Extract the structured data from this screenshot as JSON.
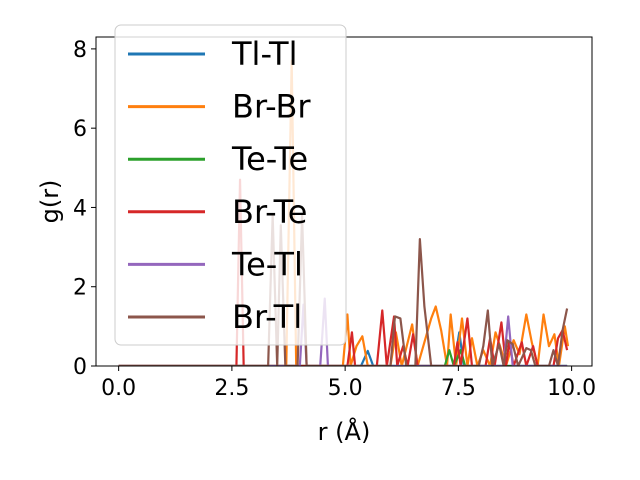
{
  "chart_data": {
    "type": "line",
    "title": "",
    "xlabel": "r (Å)",
    "ylabel": "g(r)",
    "xlim": [
      -0.5,
      10.45
    ],
    "ylim": [
      0,
      8.3
    ],
    "xticks": [
      0.0,
      2.5,
      5.0,
      7.5,
      10.0
    ],
    "xtick_labels": [
      "0.0",
      "2.5",
      "5.0",
      "7.5",
      "10.0"
    ],
    "yticks": [
      0,
      2,
      4,
      6,
      8
    ],
    "ytick_labels": [
      "0",
      "2",
      "4",
      "6",
      "8"
    ],
    "grid": false,
    "legend_position": "top-left",
    "series": [
      {
        "name": "Tl-Tl",
        "color": "#1f77b4",
        "points": [
          [
            0,
            0
          ],
          [
            5.35,
            0
          ],
          [
            5.5,
            0.38
          ],
          [
            5.62,
            0
          ],
          [
            7.4,
            0
          ],
          [
            7.52,
            0.85
          ],
          [
            7.62,
            0
          ],
          [
            9.9,
            0
          ]
        ]
      },
      {
        "name": "Br-Br",
        "color": "#ff7f0e",
        "points": [
          [
            0,
            0
          ],
          [
            3.7,
            0
          ],
          [
            3.82,
            7.7
          ],
          [
            3.92,
            0
          ],
          [
            4.95,
            0
          ],
          [
            5.05,
            1.3
          ],
          [
            5.12,
            0
          ],
          [
            5.25,
            0.5
          ],
          [
            5.38,
            0.75
          ],
          [
            5.5,
            0
          ],
          [
            6.0,
            0
          ],
          [
            6.12,
            0.85
          ],
          [
            6.25,
            0
          ],
          [
            6.48,
            1.05
          ],
          [
            6.6,
            0
          ],
          [
            6.9,
            1.2
          ],
          [
            7.0,
            1.5
          ],
          [
            7.12,
            0.9
          ],
          [
            7.25,
            0
          ],
          [
            7.33,
            1.3
          ],
          [
            7.45,
            0
          ],
          [
            7.58,
            1.2
          ],
          [
            7.7,
            0
          ],
          [
            7.8,
            0.7
          ],
          [
            7.92,
            0
          ],
          [
            8.05,
            0.4
          ],
          [
            8.2,
            0
          ],
          [
            8.32,
            0.85
          ],
          [
            8.42,
            0.5
          ],
          [
            8.55,
            0
          ],
          [
            8.72,
            0.65
          ],
          [
            8.85,
            0.3
          ],
          [
            9.0,
            1.3
          ],
          [
            9.12,
            0.6
          ],
          [
            9.25,
            0
          ],
          [
            9.38,
            1.3
          ],
          [
            9.5,
            0.5
          ],
          [
            9.62,
            0.8
          ],
          [
            9.72,
            0
          ],
          [
            9.85,
            1.0
          ],
          [
            9.92,
            0.5
          ]
        ]
      },
      {
        "name": "Te-Te",
        "color": "#2ca02c",
        "points": [
          [
            0,
            0
          ],
          [
            7.2,
            0
          ],
          [
            7.3,
            0.4
          ],
          [
            7.4,
            0
          ],
          [
            7.55,
            0.4
          ],
          [
            7.65,
            0
          ],
          [
            9.9,
            0
          ]
        ]
      },
      {
        "name": "Br-Te",
        "color": "#d62728",
        "points": [
          [
            0,
            0
          ],
          [
            2.6,
            0
          ],
          [
            2.68,
            4.7
          ],
          [
            2.76,
            0
          ],
          [
            5.05,
            0
          ],
          [
            5.15,
            0.85
          ],
          [
            5.22,
            0
          ],
          [
            5.7,
            0
          ],
          [
            5.82,
            1.4
          ],
          [
            5.92,
            0
          ],
          [
            6.08,
            1.25
          ],
          [
            6.15,
            0
          ],
          [
            6.28,
            0.5
          ],
          [
            6.38,
            0
          ],
          [
            6.5,
            0.8
          ],
          [
            6.6,
            0
          ],
          [
            7.4,
            0
          ],
          [
            7.48,
            0.6
          ],
          [
            7.55,
            0
          ],
          [
            7.7,
            1.2
          ],
          [
            7.8,
            0
          ],
          [
            8.1,
            0
          ],
          [
            8.2,
            0.7
          ],
          [
            8.3,
            0
          ],
          [
            8.45,
            1.1
          ],
          [
            8.55,
            0
          ],
          [
            8.62,
            0.6
          ],
          [
            8.72,
            0
          ],
          [
            8.9,
            0.6
          ],
          [
            9.0,
            0
          ],
          [
            9.15,
            0.5
          ],
          [
            9.25,
            0
          ],
          [
            9.6,
            0
          ],
          [
            9.7,
            0.7
          ],
          [
            9.8,
            0.9
          ],
          [
            9.9,
            0.4
          ]
        ]
      },
      {
        "name": "Te-Tl",
        "color": "#9467bd",
        "points": [
          [
            0,
            0
          ],
          [
            4.0,
            0
          ],
          [
            4.08,
            1.55
          ],
          [
            4.15,
            0
          ],
          [
            4.45,
            0
          ],
          [
            4.55,
            1.7
          ],
          [
            4.62,
            0
          ],
          [
            8.5,
            0
          ],
          [
            8.6,
            1.25
          ],
          [
            8.7,
            0
          ],
          [
            9.9,
            0
          ]
        ]
      },
      {
        "name": "Br-Tl",
        "color": "#8c564b",
        "points": [
          [
            0,
            0
          ],
          [
            3.3,
            0
          ],
          [
            3.4,
            3.8
          ],
          [
            3.5,
            0
          ],
          [
            3.58,
            3.55
          ],
          [
            3.68,
            0
          ],
          [
            3.95,
            0
          ],
          [
            4.05,
            3.8
          ],
          [
            4.15,
            0
          ],
          [
            6.0,
            0
          ],
          [
            6.1,
            1.25
          ],
          [
            6.22,
            1.2
          ],
          [
            6.35,
            0
          ],
          [
            6.55,
            0
          ],
          [
            6.65,
            3.2
          ],
          [
            6.75,
            1.5
          ],
          [
            6.9,
            0
          ],
          [
            7.95,
            0
          ],
          [
            8.05,
            0.5
          ],
          [
            8.15,
            1.4
          ],
          [
            8.25,
            0
          ],
          [
            8.4,
            0.55
          ],
          [
            8.5,
            0
          ],
          [
            8.58,
            0.65
          ],
          [
            8.7,
            0.55
          ],
          [
            8.82,
            0
          ],
          [
            9.0,
            0.45
          ],
          [
            9.1,
            0.4
          ],
          [
            9.2,
            0
          ],
          [
            9.5,
            0
          ],
          [
            9.6,
            0.4
          ],
          [
            9.7,
            0
          ],
          [
            9.8,
            0.9
          ],
          [
            9.9,
            1.45
          ]
        ]
      }
    ]
  }
}
